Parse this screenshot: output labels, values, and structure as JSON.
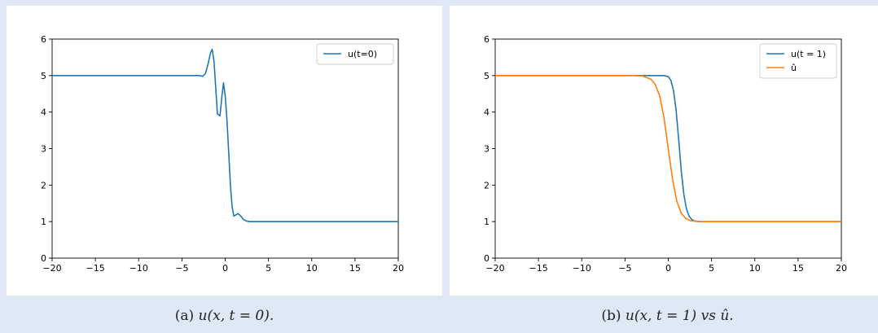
{
  "captions": {
    "a": {
      "tag": "(a)",
      "math": "u(x, t = 0)."
    },
    "b": {
      "tag": "(b)",
      "math": "u(x, t = 1) vs û."
    }
  },
  "chart_data": [
    {
      "type": "line",
      "xlim": [
        -20,
        20
      ],
      "ylim": [
        0,
        6
      ],
      "xticks": [
        -20,
        -15,
        -10,
        -5,
        0,
        5,
        10,
        15,
        20
      ],
      "yticks": [
        0,
        1,
        2,
        3,
        4,
        5,
        6
      ],
      "xtick_labels": [
        "−20",
        "−15",
        "−10",
        "−5",
        "0",
        "5",
        "10",
        "15",
        "20"
      ],
      "ytick_labels": [
        "0",
        "1",
        "2",
        "3",
        "4",
        "5",
        "6"
      ],
      "legend": "top-right",
      "grid": false,
      "series": [
        {
          "name": "u(t=0)",
          "color": "#1f77b4",
          "x": [
            -20,
            -10,
            -5,
            -3,
            -2.6,
            -2.3,
            -2.0,
            -1.7,
            -1.5,
            -1.3,
            -1.1,
            -0.9,
            -0.6,
            -0.4,
            -0.2,
            0.0,
            0.2,
            0.4,
            0.6,
            0.8,
            1.0,
            1.2,
            1.5,
            1.8,
            2.1,
            2.4,
            2.8,
            3.2,
            3.6,
            4.0,
            4.5,
            6,
            10,
            20
          ],
          "y": [
            5.0,
            5.0,
            5.0,
            5.0,
            4.98,
            5.05,
            5.3,
            5.62,
            5.72,
            5.4,
            4.7,
            3.95,
            3.9,
            4.4,
            4.8,
            4.45,
            3.8,
            2.9,
            2.0,
            1.4,
            1.15,
            1.18,
            1.22,
            1.15,
            1.06,
            1.02,
            1.0,
            1.0,
            1.0,
            1.0,
            1.0,
            1.0,
            1.0,
            1.0
          ]
        }
      ]
    },
    {
      "type": "line",
      "xlim": [
        -20,
        20
      ],
      "ylim": [
        0,
        6
      ],
      "xticks": [
        -20,
        -15,
        -10,
        -5,
        0,
        5,
        10,
        15,
        20
      ],
      "yticks": [
        0,
        1,
        2,
        3,
        4,
        5,
        6
      ],
      "xtick_labels": [
        "−20",
        "−15",
        "−10",
        "−5",
        "0",
        "5",
        "10",
        "15",
        "20"
      ],
      "ytick_labels": [
        "0",
        "1",
        "2",
        "3",
        "4",
        "5",
        "6"
      ],
      "legend": "top-right",
      "grid": false,
      "series": [
        {
          "name": "u(t = 1)",
          "color": "#1f77b4",
          "x": [
            -20,
            -10,
            -5,
            -2,
            -1,
            -0.5,
            0,
            0.3,
            0.6,
            0.9,
            1.2,
            1.5,
            1.8,
            2.1,
            2.4,
            2.7,
            3.0,
            3.5,
            4.0,
            5,
            10,
            20
          ],
          "y": [
            5.0,
            5.0,
            5.0,
            5.0,
            5.0,
            5.0,
            4.97,
            4.87,
            4.6,
            4.05,
            3.25,
            2.4,
            1.75,
            1.35,
            1.15,
            1.06,
            1.02,
            1.0,
            1.0,
            1.0,
            1.0,
            1.0
          ]
        },
        {
          "name": "û",
          "color": "#ff7f0e",
          "x": [
            -20,
            -10,
            -5,
            -4,
            -3,
            -2,
            -1.5,
            -1,
            -0.5,
            0,
            0.5,
            1,
            1.5,
            2,
            2.5,
            3,
            4,
            5,
            10,
            20
          ],
          "y": [
            5.0,
            5.0,
            5.0,
            5.0,
            4.99,
            4.9,
            4.75,
            4.45,
            3.85,
            3.0,
            2.15,
            1.55,
            1.23,
            1.09,
            1.03,
            1.01,
            1.0,
            1.0,
            1.0,
            1.0
          ]
        }
      ]
    }
  ]
}
